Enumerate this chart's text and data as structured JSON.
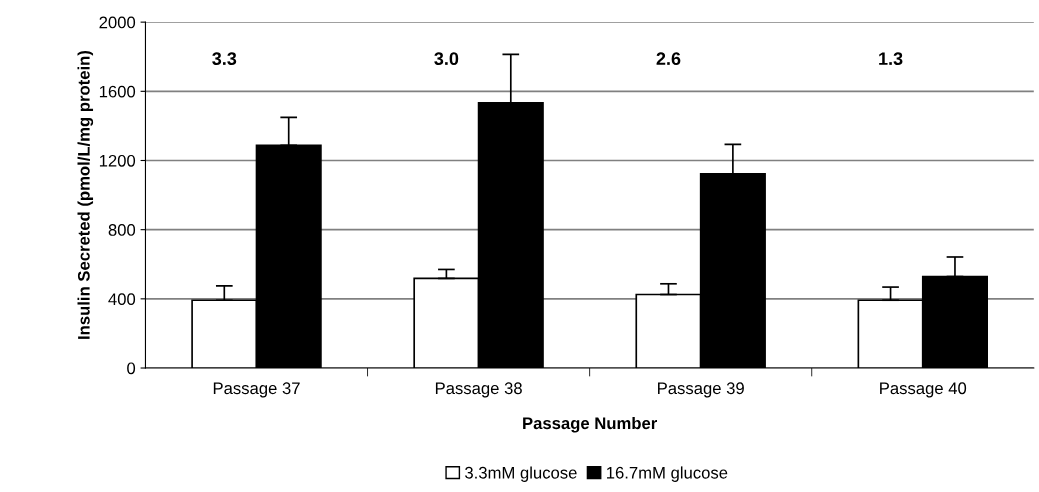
{
  "chart_data": {
    "type": "bar",
    "xlabel": "Passage Number",
    "ylabel": "Insulin Secreted (pmol/L/mg protein)",
    "categories": [
      "Passage 37",
      "Passage 38",
      "Passage 39",
      "Passage 40"
    ],
    "series": [
      {
        "name": "3.3mM glucose",
        "color": "#ffffff",
        "values": [
          392,
          518,
          425,
          392
        ],
        "errors": [
          83,
          52,
          62,
          76
        ]
      },
      {
        "name": "16.7mM glucose",
        "color": "#000000",
        "values": [
          1287,
          1534,
          1123,
          529
        ],
        "errors": [
          162,
          280,
          170,
          113
        ]
      }
    ],
    "ylim": [
      0,
      2000
    ],
    "yticks": [
      0,
      400,
      800,
      1200,
      1600,
      2000
    ],
    "grid": "y",
    "legend": "bottom",
    "annotations": [
      "3.3",
      "3.0",
      "2.6",
      "1.3"
    ]
  }
}
